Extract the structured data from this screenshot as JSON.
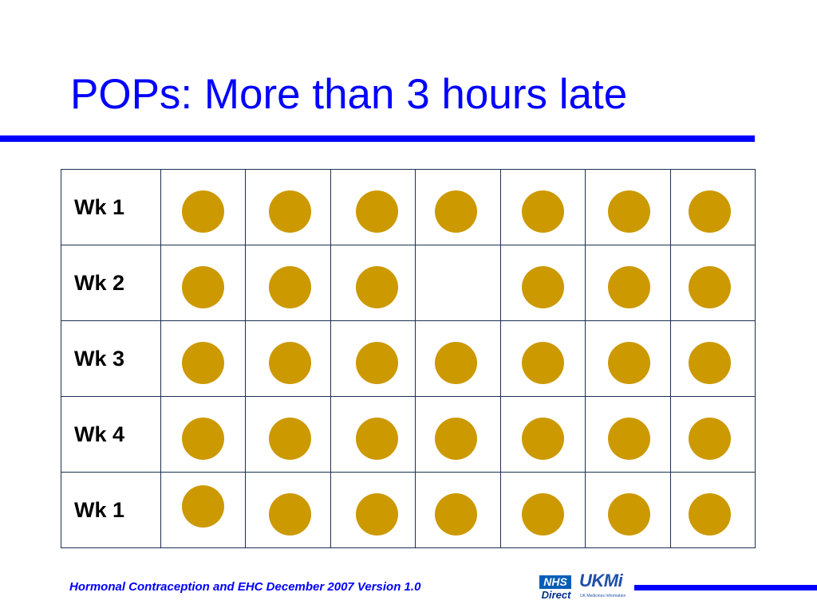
{
  "slide": {
    "title": "POPs: More than 3 hours late",
    "colors": {
      "title": "#0000ff",
      "rule": "#0000ff",
      "pill": "#cc9900",
      "grid_border": "#1b3050"
    }
  },
  "grid": {
    "rows": [
      {
        "label": "Wk 1",
        "pills": [
          true,
          true,
          true,
          true,
          true,
          true,
          true
        ]
      },
      {
        "label": "Wk 2",
        "pills": [
          true,
          true,
          true,
          false,
          true,
          true,
          true
        ]
      },
      {
        "label": "Wk 3",
        "pills": [
          true,
          true,
          true,
          true,
          true,
          true,
          true
        ]
      },
      {
        "label": "Wk 4",
        "pills": [
          true,
          true,
          true,
          true,
          true,
          true,
          true
        ]
      },
      {
        "label": "Wk 1",
        "pills": [
          true,
          true,
          true,
          true,
          true,
          true,
          true
        ]
      }
    ]
  },
  "footer": {
    "text": "Hormonal Contraception and EHC December 2007 Version 1.0",
    "logos": {
      "nhs_top": "NHS",
      "nhs_bottom": "Direct",
      "ukmi_word": "UKMi",
      "ukmi_sub": "UK Medicines Information"
    }
  }
}
